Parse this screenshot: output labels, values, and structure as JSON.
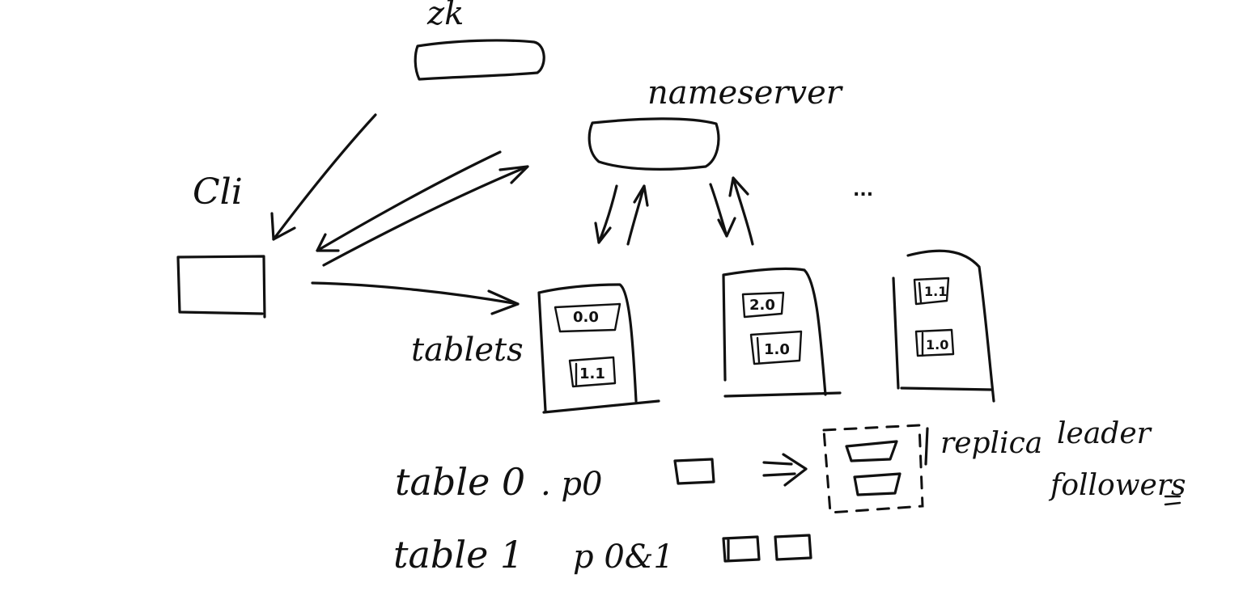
{
  "labels": {
    "zk": "zk",
    "nameserver": "nameserver",
    "cli": "Cli",
    "tablets": "tablets",
    "ellipsis": "...",
    "replica": "replica",
    "leader": "leader",
    "followers": "followers"
  },
  "tablets": [
    {
      "partitions": [
        "0.0",
        "1.1"
      ]
    },
    {
      "partitions": [
        "2.0",
        "1.0"
      ]
    },
    {
      "partitions": [
        "1.1",
        "1.0"
      ]
    }
  ],
  "notes": [
    {
      "table": "table 0",
      "partition": ". p0"
    },
    {
      "table": "table 1",
      "partition": "p 0&1"
    }
  ]
}
